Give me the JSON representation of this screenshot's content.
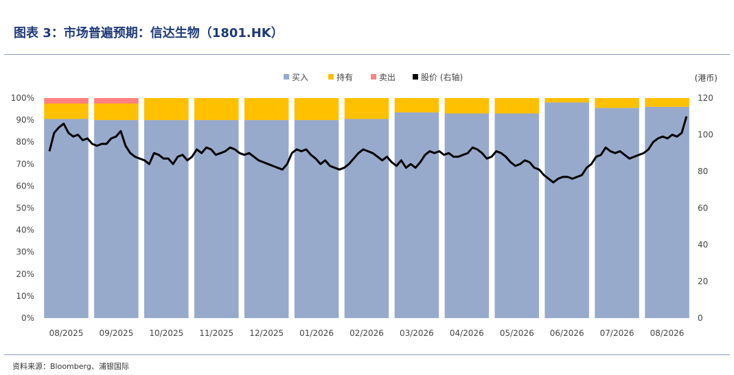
{
  "figure": {
    "title": "图表 3：市场普遍预期：信达生物（1801.HK）",
    "source": "资料来源：Bloomberg、浦银国际"
  },
  "chart_data": {
    "type": "bar",
    "stacked": true,
    "categories": [
      "08/2025",
      "09/2025",
      "10/2025",
      "11/2025",
      "12/2025",
      "01/2026",
      "02/2026",
      "03/2026",
      "04/2026",
      "05/2026",
      "06/2026",
      "07/2026",
      "08/2026"
    ],
    "series": [
      {
        "name": "买入",
        "color": "#98aacb",
        "values": [
          0.905,
          0.9,
          0.9,
          0.9,
          0.9,
          0.9,
          0.905,
          0.935,
          0.93,
          0.93,
          0.98,
          0.955,
          0.96
        ]
      },
      {
        "name": "持有",
        "color": "#ffc000",
        "values": [
          0.07,
          0.075,
          0.1,
          0.1,
          0.1,
          0.1,
          0.095,
          0.065,
          0.07,
          0.07,
          0.02,
          0.045,
          0.04
        ]
      },
      {
        "name": "卖出",
        "color": "#ff8080",
        "values": [
          0.025,
          0.025,
          0,
          0,
          0,
          0,
          0,
          0,
          0,
          0,
          0,
          0,
          0
        ]
      }
    ],
    "price_series": {
      "name": "股价 (右轴)",
      "color": "#000000",
      "values": [
        91,
        101,
        104,
        106,
        101,
        99,
        100,
        97,
        98,
        95,
        94,
        95,
        95,
        98,
        99,
        102,
        94,
        90,
        88,
        87,
        86,
        84,
        90,
        89,
        87,
        87,
        84,
        88,
        89,
        86,
        88,
        92,
        90,
        93,
        92,
        89,
        90,
        91,
        93,
        92,
        90,
        89,
        90,
        88,
        86,
        85,
        84,
        83,
        82,
        81,
        84,
        90,
        92,
        91,
        92,
        89,
        87,
        84,
        86,
        83,
        82,
        81,
        82,
        84,
        87,
        90,
        92,
        91,
        90,
        88,
        86,
        88,
        85,
        83,
        86,
        82,
        84,
        82,
        85,
        89,
        91,
        90,
        91,
        89,
        90,
        88,
        88,
        89,
        90,
        93,
        92,
        90,
        87,
        88,
        91,
        90,
        88,
        85,
        83,
        84,
        86,
        85,
        82,
        81,
        78,
        76,
        74,
        76,
        77,
        77,
        76,
        77,
        78,
        82,
        84,
        88,
        89,
        93,
        91,
        90,
        91,
        89,
        87,
        88,
        89,
        90,
        92,
        96,
        98,
        99,
        98,
        100,
        99,
        101,
        110
      ]
    },
    "ylim_left": [
      0,
      1
    ],
    "yticks_left": [
      "0%",
      "10%",
      "20%",
      "30%",
      "40%",
      "50%",
      "60%",
      "70%",
      "80%",
      "90%",
      "100%"
    ],
    "ylim_right": [
      0,
      120
    ],
    "yticks_right": [
      "0",
      "20",
      "40",
      "60",
      "80",
      "100",
      "120"
    ],
    "right_axis_label": "(港币)",
    "legend_position": "top-center",
    "grid": false
  }
}
